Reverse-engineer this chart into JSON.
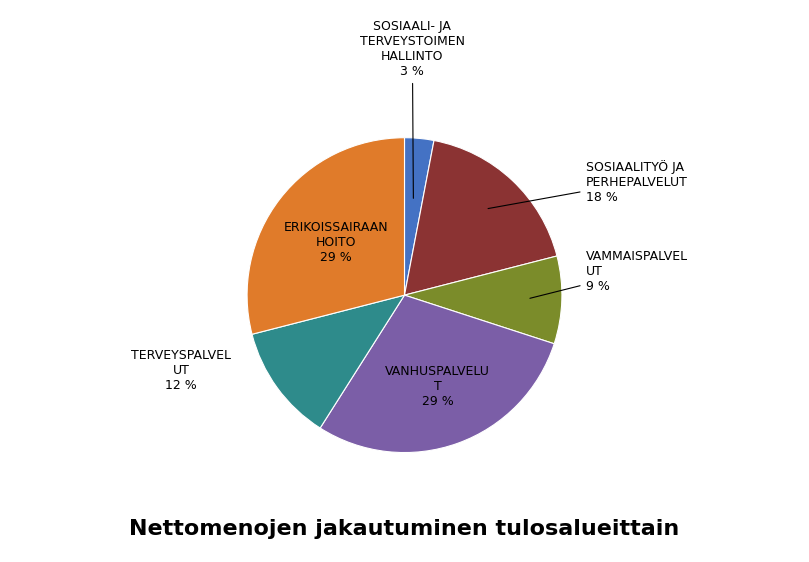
{
  "values": [
    3,
    18,
    9,
    29,
    12,
    29
  ],
  "colors": [
    "#4472C4",
    "#8B3333",
    "#7B8C2A",
    "#7B5EA7",
    "#2E8B8B",
    "#E07B2A"
  ],
  "title": "Nettomenojen jakautuminen tulosalueittain",
  "title_fontsize": 16,
  "label_fontsize": 9,
  "startangle": 90,
  "labels_text": [
    "SOSIAALI- JA\nTERVEYSTOIMEN\nHALLINTO\n3 %",
    "SOSIAALITYÖ JA\nPERHEPALVELUT\n18 %",
    "VAMMAISPALVEL\nUT\n9 %",
    "VANHUSPALVELU\nT\n29 %",
    "TERVEYSPALVEL\nUT\n12 %",
    "ERIKOISSAIRAAN\nHOITO\n29 %"
  ]
}
